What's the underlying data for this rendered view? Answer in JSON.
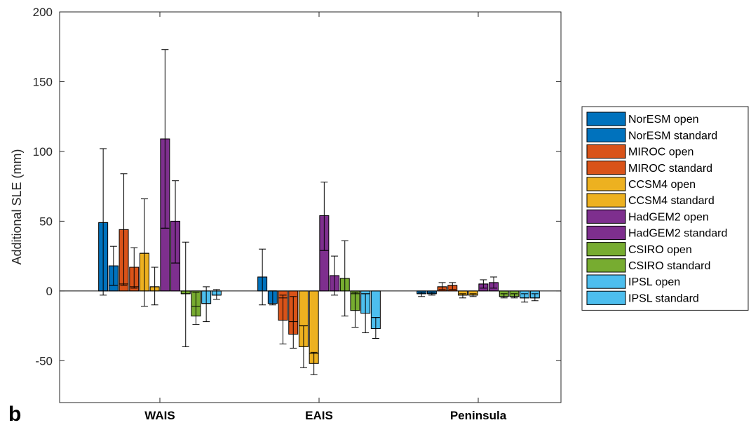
{
  "panel_label": "b",
  "chart_data": {
    "type": "bar",
    "ylabel": "Additional SLE (mm)",
    "xlabel": "",
    "ylim": [
      -80,
      200
    ],
    "yticks": [
      -50,
      0,
      50,
      100,
      150,
      200
    ],
    "ytick_labels": [
      "-50",
      "0",
      "50",
      "100",
      "150",
      "200"
    ],
    "categories": [
      "WAIS",
      "EAIS",
      "Peninsula"
    ],
    "legend_position": "right",
    "grid": false,
    "median_markers": true,
    "series": [
      {
        "name": "NorESM open",
        "color": "#0072BD",
        "values": [
          49,
          10,
          -2
        ],
        "median": [
          49,
          10,
          -2
        ],
        "err_low": [
          -3,
          -10,
          -4
        ],
        "err_high": [
          102,
          30,
          -1
        ]
      },
      {
        "name": "NorESM standard",
        "color": "#0072BD",
        "values": [
          18,
          -9,
          -2
        ],
        "median": [
          4,
          0,
          -2
        ],
        "err_low": [
          4,
          -10,
          -3
        ],
        "err_high": [
          32,
          0,
          -1
        ]
      },
      {
        "name": "MIROC open",
        "color": "#D95319",
        "values": [
          44,
          -21,
          3
        ],
        "median": [
          5,
          -5,
          3
        ],
        "err_low": [
          4,
          -38,
          1
        ],
        "err_high": [
          84,
          -3,
          6
        ]
      },
      {
        "name": "MIROC standard",
        "color": "#D95319",
        "values": [
          17,
          -31,
          4
        ],
        "median": [
          3,
          -22,
          4
        ],
        "err_low": [
          2,
          -41,
          1
        ],
        "err_high": [
          31,
          -4,
          6
        ]
      },
      {
        "name": "CCSM4 open",
        "color": "#EDB120",
        "values": [
          27,
          -40,
          -3
        ],
        "median": [
          27,
          -25,
          -3
        ],
        "err_low": [
          -11,
          -55,
          -5
        ],
        "err_high": [
          66,
          -25,
          -2
        ]
      },
      {
        "name": "CCSM4 standard",
        "color": "#EDB120",
        "values": [
          3,
          -52,
          -3
        ],
        "median": [
          3,
          -45,
          -3
        ],
        "err_low": [
          -10,
          -60,
          -4
        ],
        "err_high": [
          17,
          -44,
          -2
        ]
      },
      {
        "name": "HadGEM2 open",
        "color": "#7E2F8E",
        "values": [
          109,
          54,
          5
        ],
        "median": [
          45,
          29,
          5
        ],
        "err_low": [
          45,
          29,
          2
        ],
        "err_high": [
          173,
          78,
          8
        ]
      },
      {
        "name": "HadGEM2 standard",
        "color": "#7E2F8E",
        "values": [
          50,
          11,
          6
        ],
        "median": [
          20,
          11,
          6
        ],
        "err_low": [
          20,
          -3,
          2
        ],
        "err_high": [
          79,
          25,
          10
        ]
      },
      {
        "name": "CSIRO open",
        "color": "#77AC30",
        "values": [
          -2,
          9,
          -4
        ],
        "median": [
          -2,
          9,
          -4
        ],
        "err_low": [
          -40,
          -18,
          -5
        ],
        "err_high": [
          35,
          36,
          -2
        ]
      },
      {
        "name": "CSIRO standard",
        "color": "#77AC30",
        "values": [
          -18,
          -14,
          -4
        ],
        "median": [
          -11,
          -2,
          -4
        ],
        "err_low": [
          -24,
          -26,
          -5
        ],
        "err_high": [
          -1,
          -1,
          -2
        ]
      },
      {
        "name": "IPSL open",
        "color": "#4DBEEE",
        "values": [
          -9,
          -16,
          -5
        ],
        "median": [
          -9,
          -2,
          -5
        ],
        "err_low": [
          -22,
          -30,
          -8
        ],
        "err_high": [
          3,
          -2,
          -2
        ]
      },
      {
        "name": "IPSL standard",
        "color": "#4DBEEE",
        "values": [
          -3,
          -27,
          -5
        ],
        "median": [
          -3,
          -19,
          -5
        ],
        "err_low": [
          -6,
          -34,
          -7
        ],
        "err_high": [
          1,
          -19,
          -2
        ]
      }
    ]
  }
}
